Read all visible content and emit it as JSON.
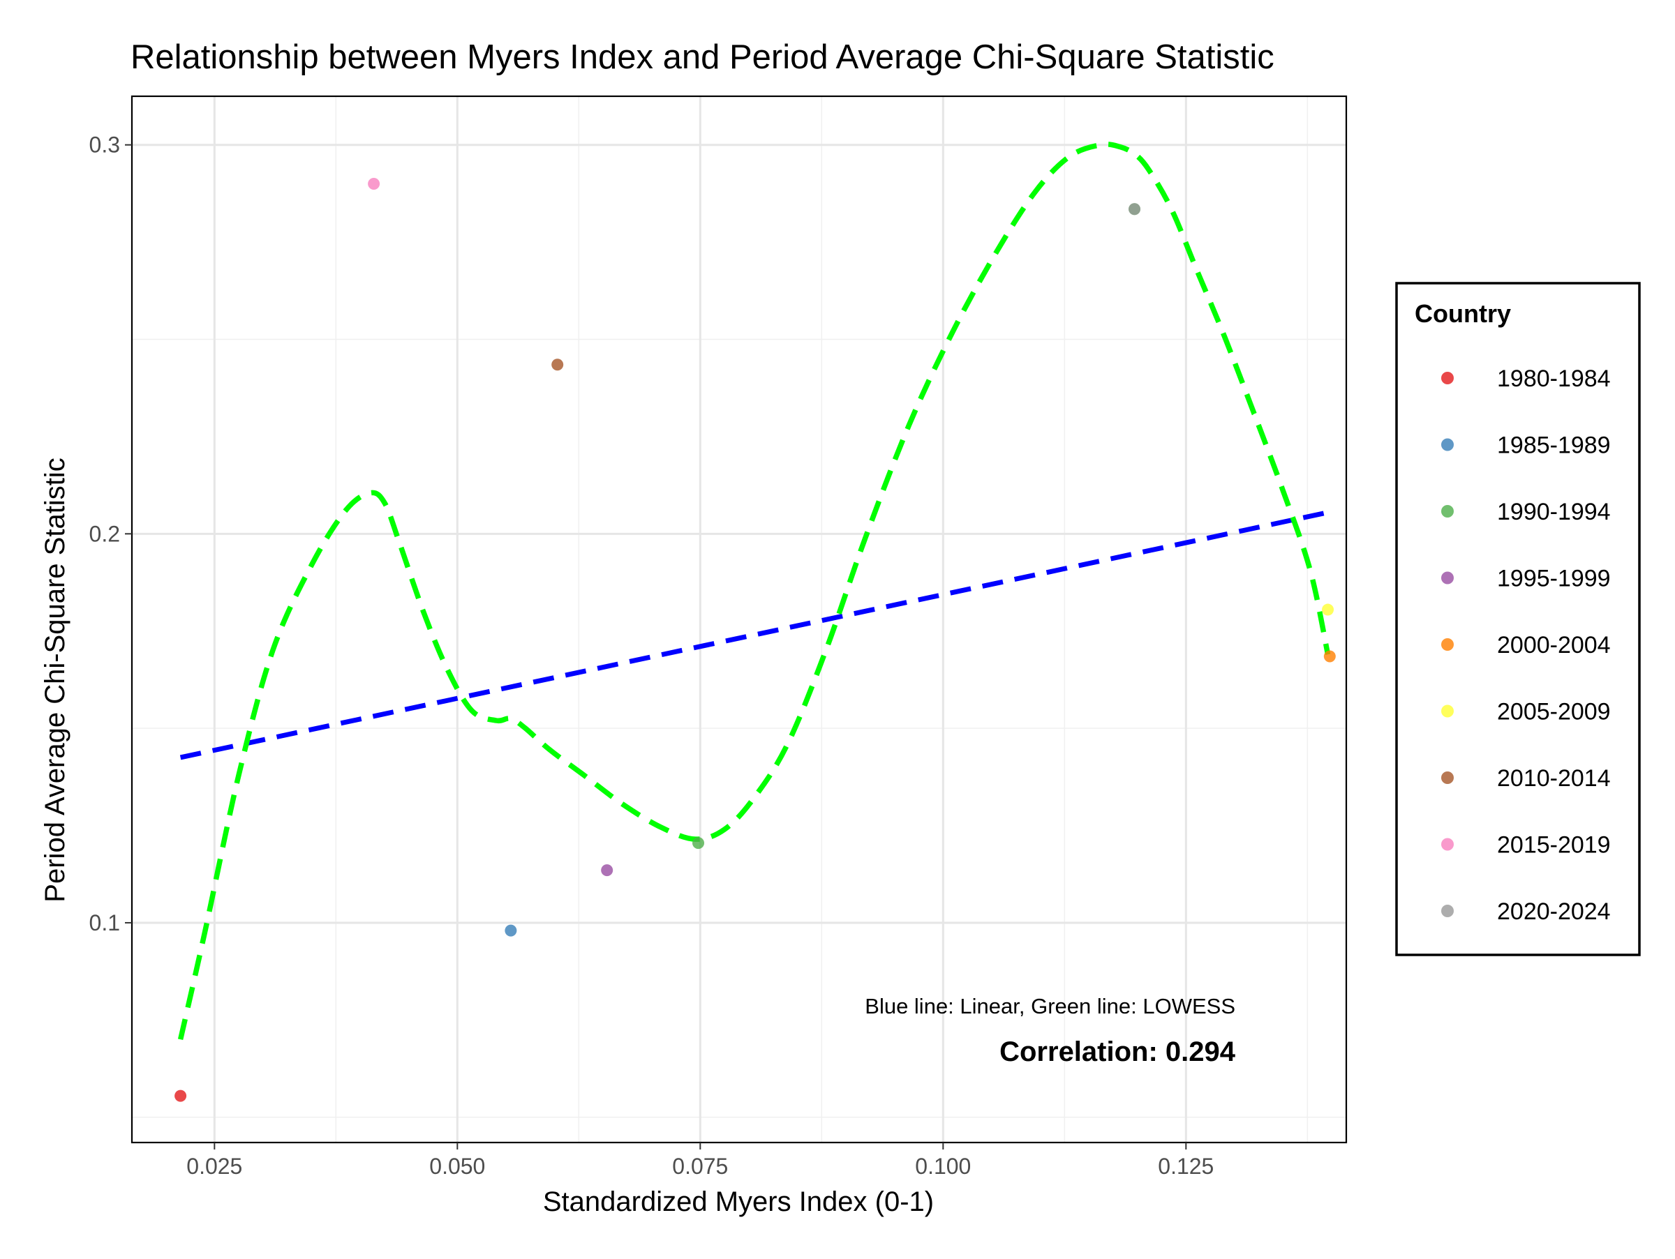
{
  "chart_data": {
    "type": "scatter",
    "title": "Relationship between Myers Index and Period Average Chi-Square Statistic",
    "xlabel": "Standardized Myers Index (0-1)",
    "ylabel": "Period Average Chi-Square Statistic",
    "xlim": [
      0.0165,
      0.1415
    ],
    "ylim": [
      0.0435,
      0.3125
    ],
    "x_ticks": [
      0.025,
      0.05,
      0.075,
      0.1,
      0.125
    ],
    "x_tick_labels": [
      "0.025",
      "0.050",
      "0.075",
      "0.100",
      "0.125"
    ],
    "y_ticks": [
      0.1,
      0.2,
      0.3
    ],
    "y_tick_labels": [
      "0.1",
      "0.2",
      "0.3"
    ],
    "grid": true,
    "legend": {
      "title": "Country",
      "placement": "right",
      "entries": [
        {
          "label": "1980-1984",
          "color": "#e41a1c"
        },
        {
          "label": "1985-1989",
          "color": "#377eb8"
        },
        {
          "label": "1990-1994",
          "color": "#4daf4a"
        },
        {
          "label": "1995-1999",
          "color": "#984ea3"
        },
        {
          "label": "2000-2004",
          "color": "#ff7f00"
        },
        {
          "label": "2005-2009",
          "color": "#ffff33"
        },
        {
          "label": "2010-2014",
          "color": "#a65628"
        },
        {
          "label": "2015-2019",
          "color": "#f781bf"
        },
        {
          "label": "2020-2024",
          "color": "#999999"
        }
      ]
    },
    "series": [
      {
        "group": "1980-1984",
        "x": 0.0215,
        "y": 0.0555,
        "color": "#e41a1c"
      },
      {
        "group": "1985-1989",
        "x": 0.0555,
        "y": 0.098,
        "color": "#377eb8"
      },
      {
        "group": "1990-1994",
        "x": 0.0748,
        "y": 0.1205,
        "color": "#4daf4a"
      },
      {
        "group": "1990-1994",
        "x": 0.1197,
        "y": 0.2835,
        "color": "#4daf4a"
      },
      {
        "group": "1995-1999",
        "x": 0.0654,
        "y": 0.1135,
        "color": "#984ea3"
      },
      {
        "group": "2000-2004",
        "x": 0.1398,
        "y": 0.1685,
        "color": "#ff7f00"
      },
      {
        "group": "2005-2009",
        "x": 0.1396,
        "y": 0.1805,
        "color": "#ffff33"
      },
      {
        "group": "2010-2014",
        "x": 0.0603,
        "y": 0.2435,
        "color": "#a65628"
      },
      {
        "group": "2015-2019",
        "x": 0.0414,
        "y": 0.29,
        "color": "#f781bf"
      },
      {
        "group": "2020-2024",
        "x": 0.1197,
        "y": 0.2835,
        "color": "#999999"
      }
    ],
    "linear_fit": {
      "color": "#0000ff",
      "x": [
        0.0215,
        0.1396
      ],
      "y": [
        0.1425,
        0.2055
      ]
    },
    "lowess_fit": {
      "color": "#00ff00",
      "x": [
        0.0215,
        0.024,
        0.0275,
        0.031,
        0.035,
        0.0385,
        0.041,
        0.0425,
        0.044,
        0.0465,
        0.049,
        0.0515,
        0.054,
        0.0555,
        0.057,
        0.0595,
        0.063,
        0.067,
        0.071,
        0.0745,
        0.0775,
        0.0805,
        0.084,
        0.088,
        0.092,
        0.0965,
        0.101,
        0.1055,
        0.1095,
        0.113,
        0.1162,
        0.1182,
        0.1198,
        0.1212,
        0.1235,
        0.126,
        0.129,
        0.132,
        0.135,
        0.1378,
        0.1396
      ],
      "y": [
        0.07,
        0.0975,
        0.138,
        0.17,
        0.192,
        0.206,
        0.2105,
        0.208,
        0.198,
        0.18,
        0.165,
        0.1545,
        0.152,
        0.1525,
        0.15,
        0.1445,
        0.138,
        0.1305,
        0.1245,
        0.1215,
        0.124,
        0.132,
        0.146,
        0.1705,
        0.199,
        0.228,
        0.252,
        0.2725,
        0.288,
        0.297,
        0.3,
        0.2995,
        0.2975,
        0.2935,
        0.2835,
        0.2685,
        0.2505,
        0.231,
        0.211,
        0.1905,
        0.169
      ]
    },
    "annotations": {
      "fit_note": "Blue line: Linear, Green line: LOWESS",
      "correlation": "Correlation: 0.294"
    }
  }
}
